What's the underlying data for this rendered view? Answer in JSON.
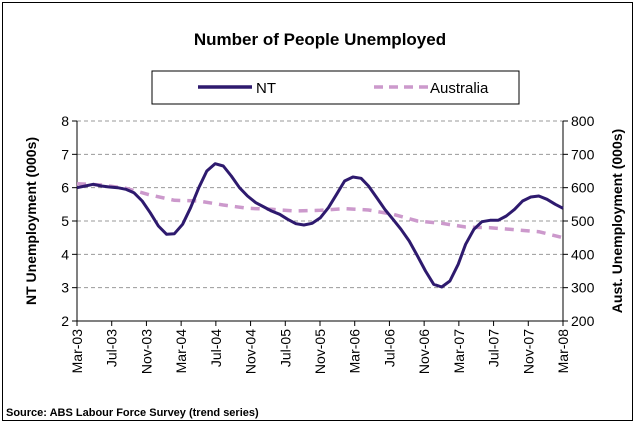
{
  "chart_data": {
    "type": "line",
    "title": "Number of People Unemployed",
    "ylabel_left": "NT Unemployment (000s)",
    "ylabel_right": "Aust. Unemployment (000s)",
    "y_left_range": [
      2,
      8
    ],
    "y_left_ticks": [
      "2",
      "3",
      "4",
      "5",
      "6",
      "7",
      "8"
    ],
    "y_right_range": [
      200,
      800
    ],
    "y_right_ticks": [
      "200",
      "300",
      "400",
      "500",
      "600",
      "700",
      "800"
    ],
    "x_ticks": [
      "Mar-03",
      "Jul-03",
      "Nov-03",
      "Mar-04",
      "Jul-04",
      "Nov-04",
      "Jul-05",
      "Nov-05",
      "Mar-06",
      "Jul-06",
      "Nov-06",
      "Mar-07",
      "Jul-07",
      "Nov-07",
      "Mar-08"
    ],
    "grid": "horizontal-dashed",
    "legend_position": "top",
    "series": [
      {
        "name": "NT",
        "axis": "left",
        "color": "#2e1a6e",
        "style": "solid",
        "x": [
          "2003-03",
          "2003-04",
          "2003-05",
          "2003-06",
          "2003-07",
          "2003-08",
          "2003-09",
          "2003-10",
          "2003-11",
          "2003-12",
          "2004-01",
          "2004-02",
          "2004-03",
          "2004-04",
          "2004-05",
          "2004-06",
          "2004-07",
          "2004-08",
          "2004-09",
          "2004-10",
          "2004-11",
          "2004-12",
          "2005-01",
          "2005-02",
          "2005-03",
          "2005-04",
          "2005-05",
          "2005-06",
          "2005-07",
          "2005-08",
          "2005-09",
          "2005-10",
          "2005-11",
          "2005-12",
          "2006-01",
          "2006-02",
          "2006-03",
          "2006-04",
          "2006-05",
          "2006-06",
          "2006-07",
          "2006-08",
          "2006-09",
          "2006-10",
          "2006-11",
          "2006-12",
          "2007-01",
          "2007-02",
          "2007-03",
          "2007-04",
          "2007-05",
          "2007-06",
          "2007-07",
          "2007-08",
          "2007-09",
          "2007-10",
          "2007-11",
          "2007-12",
          "2008-01",
          "2008-02",
          "2008-03"
        ],
        "values": [
          6.0,
          6.05,
          6.1,
          6.05,
          6.02,
          6.0,
          5.95,
          5.85,
          5.6,
          5.25,
          4.85,
          4.6,
          4.62,
          4.9,
          5.4,
          6.0,
          6.5,
          6.72,
          6.65,
          6.35,
          6.0,
          5.75,
          5.55,
          5.42,
          5.3,
          5.2,
          5.05,
          4.92,
          4.88,
          4.93,
          5.1,
          5.4,
          5.8,
          6.2,
          6.32,
          6.28,
          6.05,
          5.7,
          5.35,
          5.05,
          4.75,
          4.4,
          3.95,
          3.5,
          3.1,
          3.02,
          3.2,
          3.7,
          4.3,
          4.75,
          4.98,
          5.02,
          5.02,
          5.15,
          5.35,
          5.6,
          5.72,
          5.75,
          5.65,
          5.5,
          5.38
        ]
      },
      {
        "name": "Australia",
        "axis": "right",
        "color": "#cc99cc",
        "style": "dashed",
        "x": [
          "2003-03",
          "2003-06",
          "2003-09",
          "2003-12",
          "2004-03",
          "2004-06",
          "2004-09",
          "2004-12",
          "2005-03",
          "2005-06",
          "2005-09",
          "2005-12",
          "2006-03",
          "2006-06",
          "2006-09",
          "2006-12",
          "2007-03",
          "2007-06",
          "2007-09",
          "2007-12",
          "2008-03"
        ],
        "values": [
          612,
          608,
          598,
          578,
          562,
          560,
          548,
          538,
          535,
          530,
          532,
          537,
          533,
          520,
          500,
          493,
          482,
          480,
          474,
          468,
          450
        ]
      }
    ]
  },
  "source": "Source: ABS Labour Force Survey (trend series)"
}
